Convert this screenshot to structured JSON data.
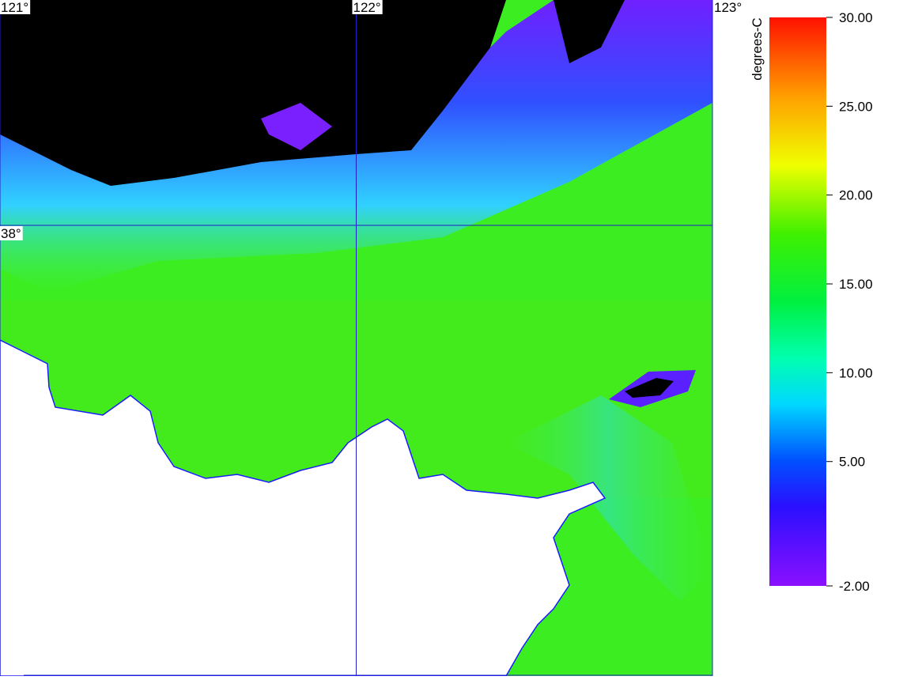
{
  "map": {
    "lonlim": [
      121,
      123.0
    ],
    "latlim": [
      37.0,
      38.5
    ],
    "graticule": {
      "longitudes": [
        {
          "value": 121,
          "label": "121°"
        },
        {
          "value": 122,
          "label": "122°"
        },
        {
          "value": 123,
          "label": "123°"
        }
      ],
      "latitudes": [
        {
          "value": 38,
          "label": "38°"
        }
      ]
    },
    "colorbar": {
      "label": "degrees-C",
      "lim": [
        -2,
        30
      ],
      "ticks": [
        {
          "value": 30,
          "label": "30.00"
        },
        {
          "value": 25,
          "label": "25.00"
        },
        {
          "value": 20,
          "label": "20.00"
        },
        {
          "value": 15,
          "label": "15.00"
        },
        {
          "value": 10,
          "label": "10.00"
        },
        {
          "value": 5,
          "label": "5.00"
        },
        {
          "value": -2,
          "label": "-2.00"
        }
      ]
    }
  }
}
